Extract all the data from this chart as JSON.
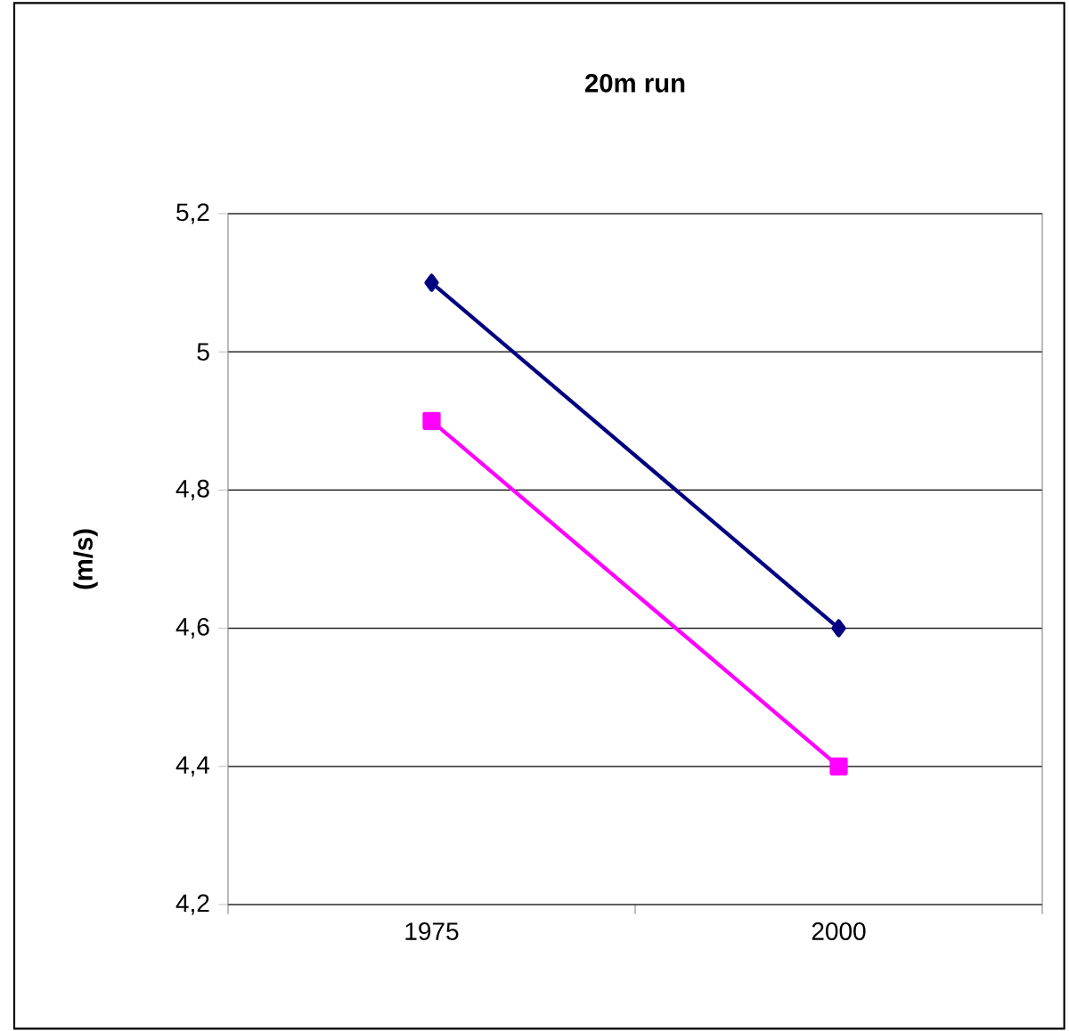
{
  "chart_data": {
    "type": "line",
    "title": "20m run",
    "ylabel": "(m/s)",
    "categories": [
      "1975",
      "2000"
    ],
    "series": [
      {
        "color": "#000080",
        "marker": "diamond",
        "values": [
          5.1,
          4.6
        ]
      },
      {
        "color": "#ff00ff",
        "marker": "square",
        "values": [
          4.9,
          4.4
        ]
      }
    ],
    "ylim": [
      4.2,
      5.2
    ],
    "yticks": [
      {
        "value": 4.2,
        "label": "4,2"
      },
      {
        "value": 4.4,
        "label": "4,4"
      },
      {
        "value": 4.6,
        "label": "4,6"
      },
      {
        "value": 4.8,
        "label": "4,8"
      },
      5,
      {
        "value": 5.2,
        "label": "5,2"
      }
    ],
    "grid": "y"
  }
}
